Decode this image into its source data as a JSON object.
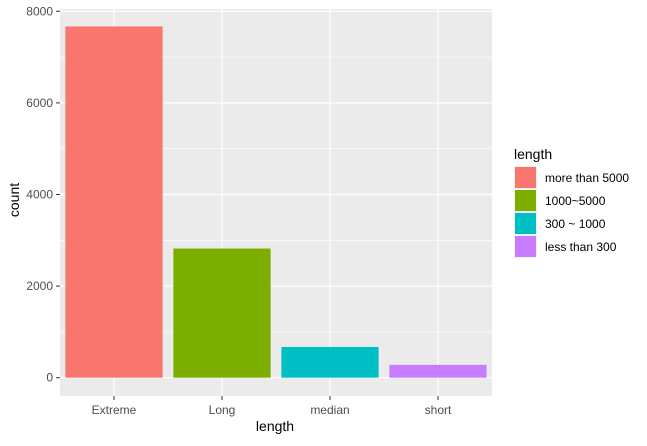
{
  "chart_data": {
    "type": "bar",
    "categories": [
      "Extreme",
      "Long",
      "median",
      "short"
    ],
    "values": [
      7670,
      2820,
      670,
      280
    ],
    "xlabel": "length",
    "ylabel": "count",
    "ylim": [
      -400,
      8050
    ],
    "yticks": [
      0,
      2000,
      4000,
      6000,
      8000
    ],
    "ytick_labels": [
      "0",
      "2000",
      "4000",
      "6000",
      "8000"
    ],
    "grid": true,
    "legend": {
      "title": "length",
      "placement": "right",
      "entries": [
        "more than 5000",
        "1000~5000",
        "300 ~ 1000",
        "less than 300"
      ]
    },
    "colors": [
      "#F8766D",
      "#7CAE00",
      "#00BFC4",
      "#C77CFF"
    ],
    "panel_background": "#EBEBEB",
    "grid_color": "#FFFFFF"
  }
}
